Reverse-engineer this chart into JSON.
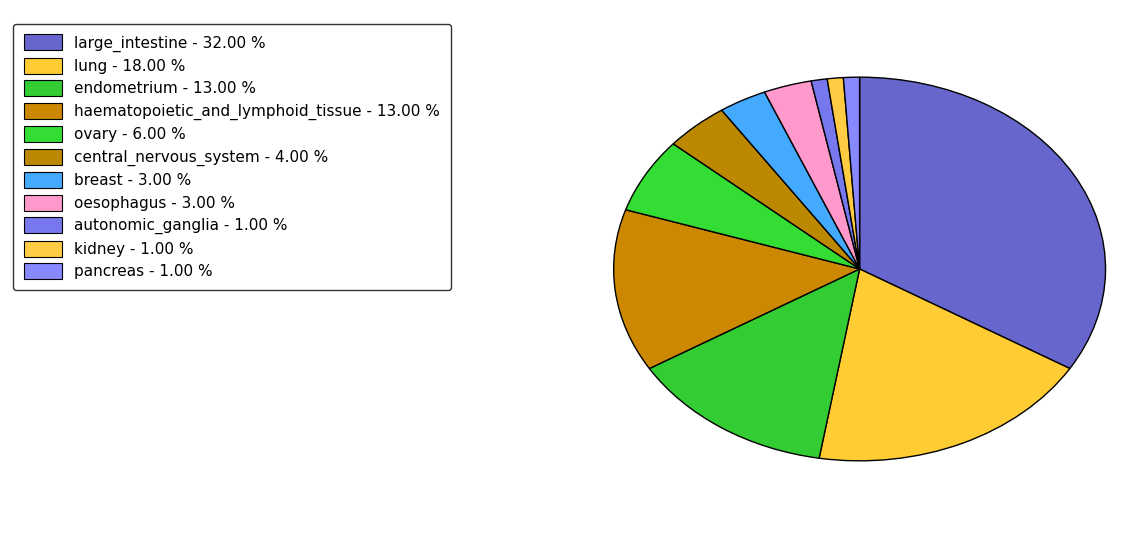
{
  "labels": [
    "large_intestine",
    "lung",
    "endometrium",
    "haematopoietic_and_lymphoid_tissue",
    "ovary",
    "central_nervous_system",
    "breast",
    "oesophagus",
    "autonomic_ganglia",
    "kidney",
    "pancreas"
  ],
  "values": [
    32,
    18,
    13,
    13,
    6,
    4,
    3,
    3,
    1,
    1,
    1
  ],
  "colors": [
    "#6666cc",
    "#ffcc33",
    "#33cc33",
    "#cc8800",
    "#33dd33",
    "#bb8800",
    "#44aaff",
    "#ff99cc",
    "#7777ee",
    "#ffcc44",
    "#8888ff"
  ],
  "legend_labels": [
    "large_intestine - 32.00 %",
    "lung - 18.00 %",
    "endometrium - 13.00 %",
    "haematopoietic_and_lymphoid_tissue - 13.00 %",
    "ovary - 6.00 %",
    "central_nervous_system - 4.00 %",
    "breast - 3.00 %",
    "oesophagus - 3.00 %",
    "autonomic_ganglia - 1.00 %",
    "kidney - 1.00 %",
    "pancreas - 1.00 %"
  ],
  "figsize": [
    11.45,
    5.38
  ],
  "dpi": 100,
  "startangle": 90,
  "yscale": 0.78
}
